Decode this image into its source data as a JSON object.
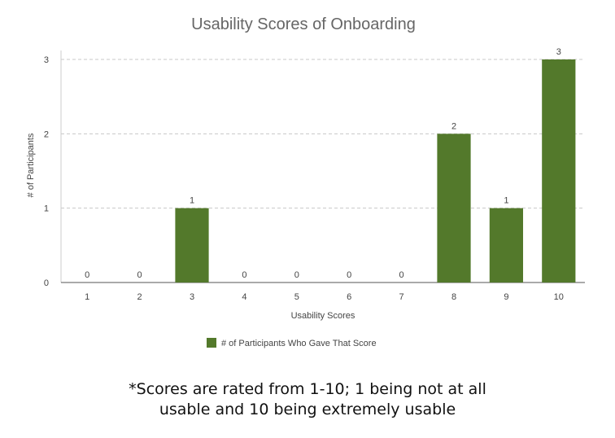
{
  "chart_data": {
    "type": "bar",
    "title": "Usability Scores of Onboarding",
    "xlabel": "Usability Scores",
    "ylabel": "# of Participants",
    "categories": [
      "1",
      "2",
      "3",
      "4",
      "5",
      "6",
      "7",
      "8",
      "9",
      "10"
    ],
    "series": [
      {
        "name": "# of Participants Who Gave That Score",
        "values": [
          0,
          0,
          1,
          0,
          0,
          0,
          0,
          2,
          1,
          3
        ],
        "color": "#53792b"
      }
    ],
    "ylim": [
      0,
      3
    ],
    "yticks": [
      0,
      1,
      2,
      3
    ],
    "grid": true,
    "legend_position": "bottom",
    "data_labels": true
  },
  "footnote": {
    "line1": "*Scores are rated from 1-10; 1 being not at all",
    "line2": "usable and 10 being extremely usable"
  }
}
